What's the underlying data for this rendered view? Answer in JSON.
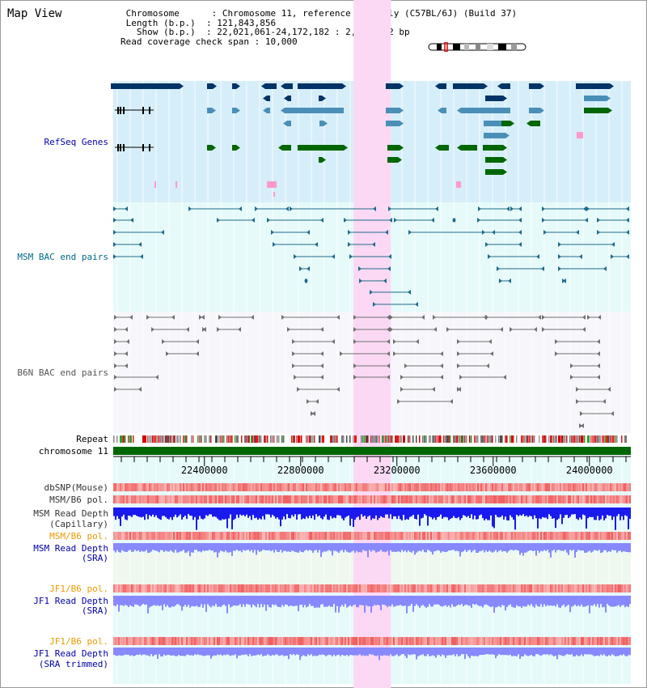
{
  "app": {
    "title": "Map View"
  },
  "header": {
    "lines": [
      {
        "label": " Chromosome     ",
        "value": "Chromosome 11, reference assembly (C57BL/6J) (Build 37)"
      },
      {
        "label": " Length (b.p.)  ",
        "value": "121,843,856"
      },
      {
        "label": "   Show (b.p.)  ",
        "value": "22,021,061-24,172,182 : 2,151,122 bp"
      },
      {
        "label": "Read coverage check span",
        "value": "10,000"
      }
    ]
  },
  "colors": {
    "refseq_bg": "#d6eef9",
    "msm_bac_bg": "#e6fafa",
    "b6n_bac_bg": "#f7f7fb",
    "highlight": "#fbd9f4",
    "gene_navy": "#003366",
    "gene_steel": "#4a8fb8",
    "gene_green": "#006600",
    "gene_pink": "#ff99cc",
    "msm_pair": "#1f6a8a",
    "b6n_pair": "#707070",
    "chromosome_bar": "#006600",
    "msm_depth": "#1a1aee",
    "sra_depth": "#8888ff",
    "snp": "#f06060",
    "label_blue": "#0000aa",
    "label_teal": "#006a8a",
    "label_gray": "#333333",
    "label_orange": "#ee9900"
  },
  "axis": {
    "start": 22021061,
    "end": 24172182,
    "ticks": [
      "22400000",
      "22800000",
      "23200000",
      "23600000",
      "24000000"
    ]
  },
  "highlight_region": {
    "start": 23020000,
    "end": 23175000
  },
  "tracks": {
    "refseq": {
      "label": "RefSeq Genes",
      "icon": "gene-model-icon"
    },
    "msm_bac": {
      "label": "MSM BAC end pairs",
      "icon": "bac-pair-icon"
    },
    "b6n_bac": {
      "label": "B6N BAC end pairs",
      "icon": "bac-pair-icon"
    },
    "repeat": {
      "label": "Repeat"
    },
    "chromosome": {
      "label": "chromosome 11"
    },
    "dbsnp": {
      "label": "dbSNP(Mouse)"
    },
    "msm_b6_pol_1": {
      "label": "MSM/B6 pol."
    },
    "msm_depth_cap": {
      "label1": "MSM Read Depth",
      "label2": "(Capillary)"
    },
    "msm_b6_pol_2": {
      "label": "MSM/B6 pol."
    },
    "msm_depth_sra": {
      "label1": "MSM Read Depth",
      "label2": "(SRA)"
    },
    "jf1_b6_pol_1": {
      "label": "JF1/B6 pol."
    },
    "jf1_depth_sra": {
      "label1": "JF1 Read Depth",
      "label2": "(SRA)"
    },
    "jf1_b6_pol_2": {
      "label": "JF1/B6 pol."
    },
    "jf1_depth_trim": {
      "label1": "JF1 Read Depth",
      "label2": "(SRA trimmed)"
    }
  }
}
